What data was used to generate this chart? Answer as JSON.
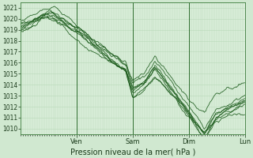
{
  "xlabel": "Pression niveau de la mer( hPa )",
  "bg_color": "#d0e8d0",
  "plot_bg_color": "#d8edd8",
  "grid_minor_color": "#b8d8b8",
  "grid_major_color": "#90c090",
  "line_color": "#1a5a1a",
  "ylim": [
    1009.5,
    1021.5
  ],
  "yticks": [
    1010,
    1011,
    1012,
    1013,
    1014,
    1015,
    1016,
    1017,
    1018,
    1019,
    1020,
    1021
  ],
  "day_labels": [
    "Ven",
    "Sam",
    "Dim",
    "Lun"
  ],
  "day_positions": [
    0.25,
    0.5,
    0.75,
    1.0
  ],
  "n_points": 300
}
